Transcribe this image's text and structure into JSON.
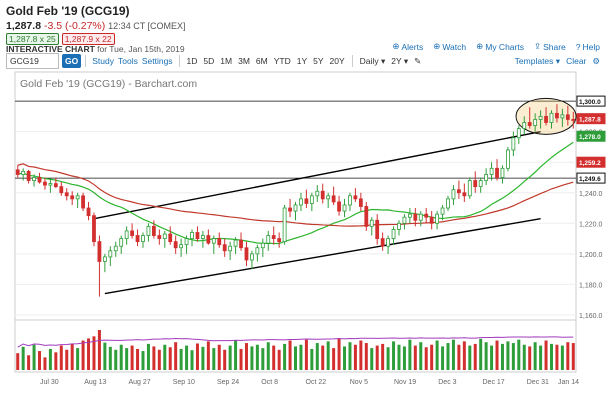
{
  "header": {
    "title": "Gold Feb '19 (GCG19)",
    "last": "1,287.8",
    "change": "-3.5 (-0.27%)",
    "time_exchange": "12:34 CT [COMEX]",
    "bid": "1,287.8 x 25",
    "ask": "1,287.9 x 22",
    "chart_label": "INTERACTIVE CHART",
    "chart_date": "for Tue, Jan 15th, 2019"
  },
  "actions": {
    "alerts": "Alerts",
    "watch": "Watch",
    "my_charts": "My Charts",
    "share": "Share",
    "help": "Help"
  },
  "toolbar": {
    "symbol": "GCG19",
    "go": "GO",
    "study": "Study",
    "tools": "Tools",
    "settings": "Settings",
    "periods": [
      "1D",
      "5D",
      "1M",
      "3M",
      "6M",
      "YTD",
      "1Y",
      "5Y",
      "20Y"
    ],
    "interval": "Daily",
    "type": "2Y",
    "templates": "Templates",
    "clear": "Clear"
  },
  "chart_title": "Gold Feb '19 (GCG19) - Barchart.com",
  "colors": {
    "up": "#2e9e3a",
    "down": "#d32f2f",
    "ma_green": "#2db52d",
    "ma_red": "#c0392b",
    "volume_line": "#a23bbd",
    "link": "#1a6fb5"
  },
  "chart_data": {
    "type": "candlestick",
    "x_labels": [
      "Jul 30",
      "Aug 13",
      "Aug 27",
      "Sep 10",
      "Sep 24",
      "Oct 8",
      "Oct 22",
      "Nov 5",
      "Nov 19",
      "Dec 3",
      "Dec 17",
      "Dec 31",
      "Jan 14"
    ],
    "y_ticks": [
      1160,
      1180,
      1200,
      1220,
      1240,
      1260,
      1280,
      1300
    ],
    "y_tick_labels": [
      "1,160.0",
      "1,180.0",
      "1,200.0",
      "1,220.0",
      "1,240.0",
      "1,260.0",
      "1,280.0",
      "1,300.0"
    ],
    "price_tags": [
      {
        "label": "1,300.0",
        "value": 1300,
        "color": "#111"
      },
      {
        "label": "1,287.8",
        "value": 1288.5,
        "color": "#d32f2f"
      },
      {
        "label": "1,278.0",
        "value": 1277,
        "color": "#2e9e3a"
      },
      {
        "label": "1,259.2",
        "value": 1260,
        "color": "#d32f2f"
      },
      {
        "label": "1,249.6",
        "value": 1249.6,
        "color": "#111"
      }
    ],
    "ylim": [
      1158,
      1304
    ],
    "candles": [
      [
        1255,
        1258,
        1250,
        1252
      ],
      [
        1252,
        1256,
        1248,
        1254
      ],
      [
        1254,
        1255,
        1246,
        1248
      ],
      [
        1248,
        1252,
        1244,
        1250
      ],
      [
        1250,
        1253,
        1246,
        1247
      ],
      [
        1247,
        1250,
        1242,
        1245
      ],
      [
        1245,
        1249,
        1240,
        1246
      ],
      [
        1246,
        1250,
        1243,
        1244
      ],
      [
        1244,
        1247,
        1238,
        1240
      ],
      [
        1240,
        1243,
        1235,
        1238
      ],
      [
        1238,
        1241,
        1232,
        1236
      ],
      [
        1236,
        1240,
        1230,
        1238
      ],
      [
        1238,
        1240,
        1228,
        1230
      ],
      [
        1230,
        1234,
        1222,
        1225
      ],
      [
        1225,
        1227,
        1205,
        1208
      ],
      [
        1208,
        1212,
        1172,
        1195
      ],
      [
        1195,
        1200,
        1188,
        1198
      ],
      [
        1198,
        1205,
        1192,
        1202
      ],
      [
        1202,
        1208,
        1198,
        1205
      ],
      [
        1205,
        1212,
        1200,
        1210
      ],
      [
        1210,
        1218,
        1206,
        1215
      ],
      [
        1215,
        1220,
        1210,
        1212
      ],
      [
        1212,
        1216,
        1205,
        1208
      ],
      [
        1208,
        1214,
        1204,
        1212
      ],
      [
        1212,
        1220,
        1208,
        1218
      ],
      [
        1218,
        1222,
        1210,
        1212
      ],
      [
        1212,
        1216,
        1206,
        1210
      ],
      [
        1210,
        1215,
        1204,
        1213
      ],
      [
        1213,
        1218,
        1206,
        1208
      ],
      [
        1208,
        1212,
        1200,
        1204
      ],
      [
        1204,
        1210,
        1198,
        1206
      ],
      [
        1206,
        1212,
        1200,
        1210
      ],
      [
        1210,
        1216,
        1205,
        1214
      ],
      [
        1214,
        1218,
        1208,
        1210
      ],
      [
        1210,
        1215,
        1204,
        1212
      ],
      [
        1212,
        1216,
        1206,
        1207
      ],
      [
        1207,
        1212,
        1200,
        1210
      ],
      [
        1210,
        1214,
        1204,
        1206
      ],
      [
        1206,
        1210,
        1198,
        1202
      ],
      [
        1202,
        1208,
        1196,
        1205
      ],
      [
        1205,
        1211,
        1200,
        1209
      ],
      [
        1209,
        1214,
        1202,
        1204
      ],
      [
        1204,
        1208,
        1192,
        1196
      ],
      [
        1196,
        1202,
        1190,
        1200
      ],
      [
        1200,
        1206,
        1195,
        1204
      ],
      [
        1204,
        1210,
        1198,
        1207
      ],
      [
        1207,
        1215,
        1202,
        1212
      ],
      [
        1212,
        1218,
        1206,
        1210
      ],
      [
        1210,
        1214,
        1204,
        1208
      ],
      [
        1208,
        1232,
        1206,
        1230
      ],
      [
        1230,
        1236,
        1224,
        1228
      ],
      [
        1228,
        1234,
        1222,
        1232
      ],
      [
        1232,
        1240,
        1228,
        1236
      ],
      [
        1236,
        1242,
        1230,
        1233
      ],
      [
        1233,
        1240,
        1228,
        1238
      ],
      [
        1238,
        1245,
        1234,
        1241
      ],
      [
        1241,
        1246,
        1233,
        1236
      ],
      [
        1236,
        1240,
        1230,
        1238
      ],
      [
        1238,
        1244,
        1232,
        1234
      ],
      [
        1234,
        1238,
        1225,
        1228
      ],
      [
        1228,
        1236,
        1224,
        1232
      ],
      [
        1232,
        1240,
        1228,
        1238
      ],
      [
        1238,
        1243,
        1234,
        1236
      ],
      [
        1236,
        1240,
        1228,
        1231
      ],
      [
        1231,
        1234,
        1215,
        1218
      ],
      [
        1218,
        1224,
        1212,
        1222
      ],
      [
        1222,
        1226,
        1206,
        1210
      ],
      [
        1210,
        1214,
        1202,
        1205
      ],
      [
        1205,
        1212,
        1200,
        1210
      ],
      [
        1210,
        1218,
        1206,
        1216
      ],
      [
        1216,
        1222,
        1212,
        1220
      ],
      [
        1220,
        1226,
        1216,
        1224
      ],
      [
        1224,
        1230,
        1220,
        1226
      ],
      [
        1226,
        1230,
        1218,
        1222
      ],
      [
        1222,
        1228,
        1218,
        1226
      ],
      [
        1226,
        1230,
        1220,
        1224
      ],
      [
        1224,
        1228,
        1216,
        1220
      ],
      [
        1220,
        1228,
        1216,
        1226
      ],
      [
        1226,
        1232,
        1222,
        1230
      ],
      [
        1230,
        1238,
        1228,
        1236
      ],
      [
        1236,
        1245,
        1232,
        1242
      ],
      [
        1242,
        1248,
        1236,
        1240
      ],
      [
        1240,
        1246,
        1234,
        1238
      ],
      [
        1238,
        1250,
        1236,
        1248
      ],
      [
        1248,
        1254,
        1240,
        1244
      ],
      [
        1244,
        1250,
        1240,
        1248
      ],
      [
        1248,
        1256,
        1245,
        1252
      ],
      [
        1252,
        1260,
        1248,
        1256
      ],
      [
        1256,
        1262,
        1248,
        1250
      ],
      [
        1250,
        1258,
        1246,
        1256
      ],
      [
        1256,
        1270,
        1254,
        1268
      ],
      [
        1268,
        1280,
        1264,
        1276
      ],
      [
        1276,
        1284,
        1272,
        1282
      ],
      [
        1282,
        1290,
        1278,
        1286
      ],
      [
        1286,
        1296,
        1282,
        1284
      ],
      [
        1284,
        1292,
        1280,
        1288
      ],
      [
        1288,
        1294,
        1282,
        1290
      ],
      [
        1290,
        1296,
        1284,
        1286
      ],
      [
        1286,
        1294,
        1282,
        1292
      ],
      [
        1292,
        1298,
        1286,
        1289
      ],
      [
        1289,
        1295,
        1283,
        1291
      ],
      [
        1291,
        1297,
        1284,
        1288
      ],
      [
        1288,
        1293,
        1282,
        1287.8
      ]
    ],
    "volume": [
      40,
      55,
      35,
      60,
      45,
      30,
      50,
      42,
      58,
      48,
      62,
      52,
      70,
      75,
      80,
      95,
      65,
      55,
      48,
      60,
      52,
      58,
      50,
      45,
      62,
      56,
      48,
      60,
      54,
      66,
      50,
      58,
      47,
      63,
      55,
      68,
      52,
      60,
      48,
      58,
      70,
      50,
      64,
      56,
      60,
      52,
      66,
      58,
      48,
      62,
      70,
      56,
      60,
      72,
      50,
      64,
      58,
      68,
      52,
      74,
      56,
      66,
      60,
      70,
      64,
      52,
      58,
      62,
      54,
      68,
      60,
      56,
      72,
      58,
      66,
      54,
      60,
      70,
      56,
      64,
      72,
      60,
      68,
      58,
      62,
      74,
      66,
      58,
      70,
      62,
      68,
      64,
      72,
      60,
      56,
      66,
      58,
      70,
      62,
      60,
      58,
      66,
      64
    ]
  }
}
